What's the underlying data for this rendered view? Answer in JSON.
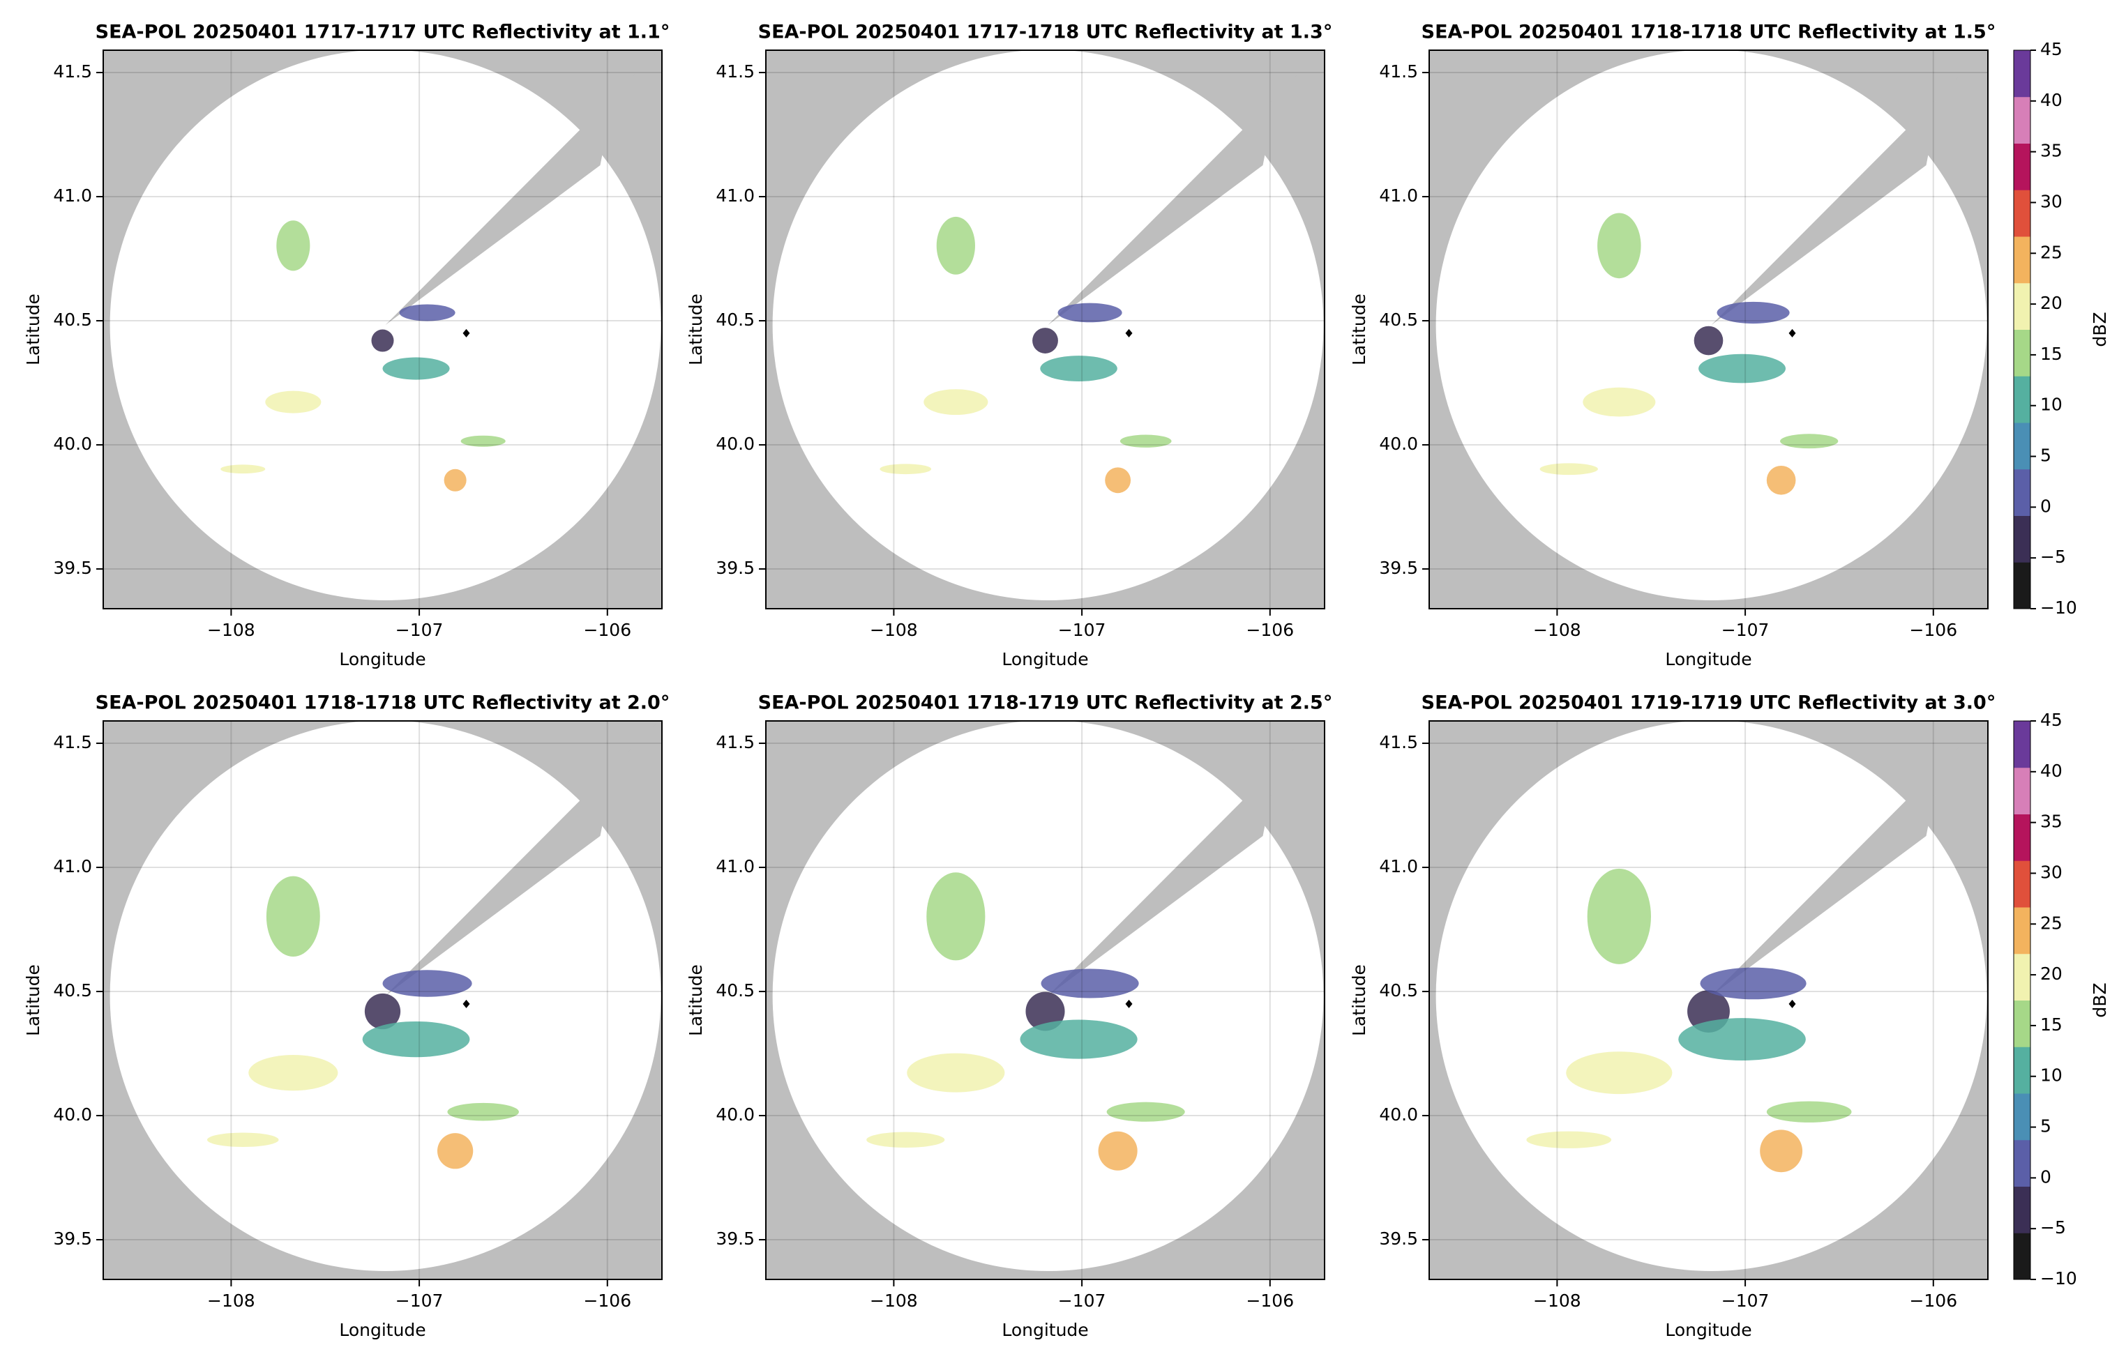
{
  "chart_data": [
    {
      "type": "radar-map",
      "title": "SEA-POL 20250401 1717-1717 UTC Reflectivity at 1.1°",
      "xlabel": "Longitude",
      "ylabel": "Latitude",
      "xlim": [
        -108.68,
        -105.71
      ],
      "ylim": [
        39.34,
        41.59
      ],
      "xticks": [
        {
          "value": -108,
          "label": "−108"
        },
        {
          "value": -107,
          "label": "−107"
        },
        {
          "value": -106,
          "label": "−106"
        }
      ],
      "yticks": [
        39.5,
        {
          "value": 40,
          "label": "40.0"
        },
        40.5,
        {
          "value": 41,
          "label": "41.0"
        },
        41.5
      ],
      "grid": true,
      "marker": {
        "x": -106.75,
        "y": 40.45
      }
    },
    {
      "type": "radar-map",
      "title": "SEA-POL 20250401 1717-1718 UTC Reflectivity at 1.3°",
      "xlabel": "Longitude",
      "ylabel": "Latitude",
      "xlim": [
        -108.68,
        -105.71
      ],
      "ylim": [
        39.34,
        41.59
      ],
      "xticks": [
        {
          "value": -108,
          "label": "−108"
        },
        {
          "value": -107,
          "label": "−107"
        },
        {
          "value": -106,
          "label": "−106"
        }
      ],
      "yticks": [
        39.5,
        {
          "value": 40,
          "label": "40.0"
        },
        40.5,
        {
          "value": 41,
          "label": "41.0"
        },
        41.5
      ],
      "grid": true,
      "marker": {
        "x": -106.75,
        "y": 40.45
      }
    },
    {
      "type": "radar-map",
      "title": "SEA-POL 20250401 1718-1718 UTC Reflectivity at 1.5°",
      "xlabel": "Longitude",
      "ylabel": "Latitude",
      "xlim": [
        -108.68,
        -105.71
      ],
      "ylim": [
        39.34,
        41.59
      ],
      "xticks": [
        {
          "value": -108,
          "label": "−108"
        },
        {
          "value": -107,
          "label": "−107"
        },
        {
          "value": -106,
          "label": "−106"
        }
      ],
      "yticks": [
        39.5,
        {
          "value": 40,
          "label": "40.0"
        },
        40.5,
        {
          "value": 41,
          "label": "41.0"
        },
        41.5
      ],
      "grid": true,
      "marker": {
        "x": -106.75,
        "y": 40.45
      },
      "colorbar": {
        "label": "dBZ",
        "lim": [
          -10,
          45
        ],
        "ticks": [
          {
            "value": -10,
            "label": "−10"
          },
          {
            "value": -5,
            "label": "−5"
          },
          0,
          5,
          10,
          15,
          20,
          25,
          30,
          35,
          40,
          45
        ],
        "colors": [
          "#1a1a1a",
          "#3b2f55",
          "#5b5fa8",
          "#4a8fb5",
          "#55b0a0",
          "#a6d888",
          "#f1f2b0",
          "#f3b35e",
          "#e0503b",
          "#b5145c",
          "#d77fb8",
          "#6a3a9a"
        ]
      }
    },
    {
      "type": "radar-map",
      "title": "SEA-POL 20250401 1718-1718 UTC Reflectivity at 2.0°",
      "xlabel": "Longitude",
      "ylabel": "Latitude",
      "xlim": [
        -108.68,
        -105.71
      ],
      "ylim": [
        39.34,
        41.59
      ],
      "xticks": [
        {
          "value": -108,
          "label": "−108"
        },
        {
          "value": -107,
          "label": "−107"
        },
        {
          "value": -106,
          "label": "−106"
        }
      ],
      "yticks": [
        39.5,
        {
          "value": 40,
          "label": "40.0"
        },
        40.5,
        {
          "value": 41,
          "label": "41.0"
        },
        41.5
      ],
      "grid": true,
      "marker": {
        "x": -106.75,
        "y": 40.45
      }
    },
    {
      "type": "radar-map",
      "title": "SEA-POL 20250401 1718-1719 UTC Reflectivity at 2.5°",
      "xlabel": "Longitude",
      "ylabel": "Latitude",
      "xlim": [
        -108.68,
        -105.71
      ],
      "ylim": [
        39.34,
        41.59
      ],
      "xticks": [
        {
          "value": -108,
          "label": "−108"
        },
        {
          "value": -107,
          "label": "−107"
        },
        {
          "value": -106,
          "label": "−106"
        }
      ],
      "yticks": [
        39.5,
        {
          "value": 40,
          "label": "40.0"
        },
        40.5,
        {
          "value": 41,
          "label": "41.0"
        },
        41.5
      ],
      "grid": true,
      "marker": {
        "x": -106.75,
        "y": 40.45
      }
    },
    {
      "type": "radar-map",
      "title": "SEA-POL 20250401 1719-1719 UTC Reflectivity at 3.0°",
      "xlabel": "Longitude",
      "ylabel": "Latitude",
      "xlim": [
        -108.68,
        -105.71
      ],
      "ylim": [
        39.34,
        41.59
      ],
      "xticks": [
        {
          "value": -108,
          "label": "−108"
        },
        {
          "value": -107,
          "label": "−107"
        },
        {
          "value": -106,
          "label": "−106"
        }
      ],
      "yticks": [
        39.5,
        {
          "value": 40,
          "label": "40.0"
        },
        40.5,
        {
          "value": 41,
          "label": "41.0"
        },
        41.5
      ],
      "grid": true,
      "marker": {
        "x": -106.75,
        "y": 40.45
      },
      "colorbar": {
        "label": "dBZ",
        "lim": [
          -10,
          45
        ],
        "ticks": [
          {
            "value": -10,
            "label": "−10"
          },
          {
            "value": -5,
            "label": "−5"
          },
          0,
          5,
          10,
          15,
          20,
          25,
          30,
          35,
          40,
          45
        ],
        "colors": [
          "#1a1a1a",
          "#3b2f55",
          "#5b5fa8",
          "#4a8fb5",
          "#55b0a0",
          "#a6d888",
          "#f1f2b0",
          "#f3b35e",
          "#e0503b",
          "#b5145c",
          "#d77fb8",
          "#6a3a9a"
        ]
      }
    }
  ]
}
